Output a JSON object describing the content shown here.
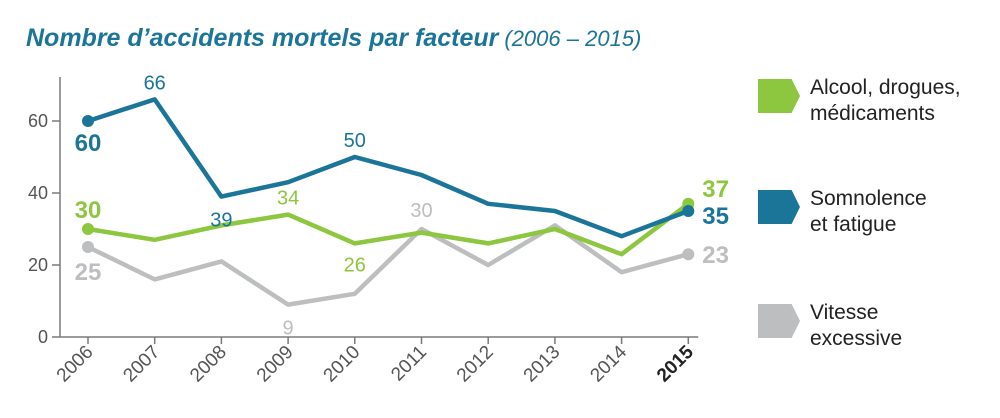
{
  "title": {
    "main": "Nombre d’accidents mortels par facteur",
    "sub": "(2006 – 2015)"
  },
  "chart_data": {
    "type": "line",
    "x": [
      "2006",
      "2007",
      "2008",
      "2009",
      "2010",
      "2011",
      "2012",
      "2013",
      "2014",
      "2015"
    ],
    "x_bold": [
      "2015"
    ],
    "y_ticks": [
      0,
      20,
      40,
      60
    ],
    "ylim": [
      0,
      70
    ],
    "grid": false,
    "legend_placement": "right",
    "series": [
      {
        "name": "Alcool, drogues, médicaments",
        "color": "#8dc63f",
        "values": [
          30,
          27,
          31,
          34,
          26,
          29,
          26,
          30,
          23,
          37
        ]
      },
      {
        "name": "Somnolence et fatigue",
        "color": "#1b7598",
        "values": [
          60,
          66,
          39,
          43,
          50,
          45,
          37,
          35,
          28,
          35
        ]
      },
      {
        "name": "Vitesse excessive",
        "color": "#bcbec0",
        "values": [
          25,
          16,
          21,
          9,
          12,
          30,
          20,
          31,
          18,
          23
        ]
      }
    ],
    "data_labels": [
      {
        "series": 1,
        "index": 0,
        "text": "60",
        "bold": true
      },
      {
        "series": 1,
        "index": 1,
        "text": "66",
        "bold": false
      },
      {
        "series": 1,
        "index": 2,
        "text": "39",
        "bold": false
      },
      {
        "series": 1,
        "index": 4,
        "text": "50",
        "bold": false
      },
      {
        "series": 1,
        "index": 9,
        "text": "35",
        "bold": true
      },
      {
        "series": 0,
        "index": 0,
        "text": "30",
        "bold": true
      },
      {
        "series": 0,
        "index": 3,
        "text": "34",
        "bold": false
      },
      {
        "series": 0,
        "index": 4,
        "text": "26",
        "bold": false
      },
      {
        "series": 0,
        "index": 9,
        "text": "37",
        "bold": true
      },
      {
        "series": 2,
        "index": 0,
        "text": "25",
        "bold": true
      },
      {
        "series": 2,
        "index": 3,
        "text": "9",
        "bold": false
      },
      {
        "series": 2,
        "index": 5,
        "text": "30",
        "bold": false
      },
      {
        "series": 2,
        "index": 9,
        "text": "23",
        "bold": true
      }
    ]
  },
  "legend": [
    {
      "line1": "Alcool, drogues,",
      "line2": "médicaments",
      "color": "#8dc63f"
    },
    {
      "line1": "Somnolence",
      "line2": "et fatigue",
      "color": "#1b7598"
    },
    {
      "line1": "Vitesse",
      "line2": "excessive",
      "color": "#bcbec0"
    }
  ]
}
